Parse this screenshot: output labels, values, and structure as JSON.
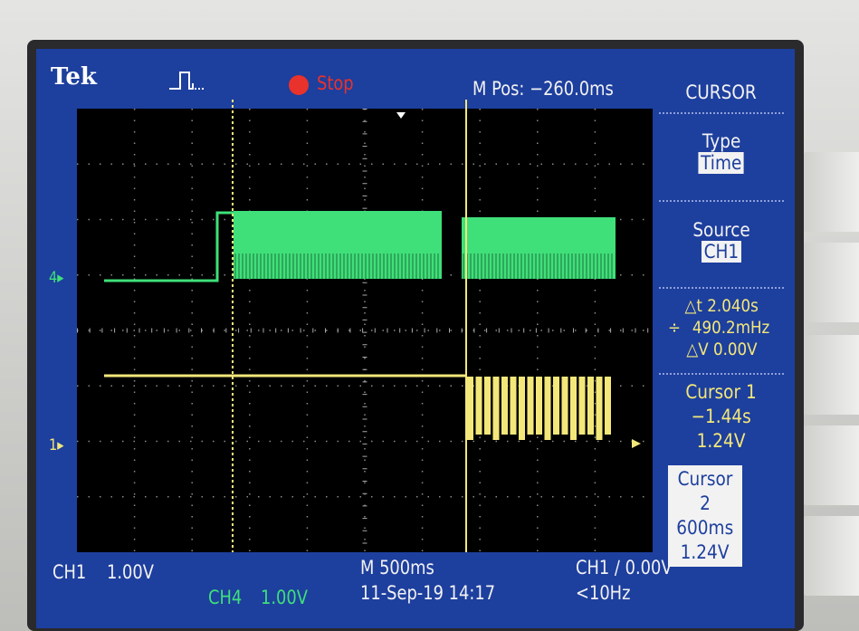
{
  "header": {
    "brand": "Tek",
    "acq_icon": "pulse-icon",
    "run_state": "Stop",
    "run_color": "#e8322b",
    "m_pos": "M Pos: −260.0ms"
  },
  "menu": {
    "title": "CURSOR",
    "type_label": "Type",
    "type_value": "Time",
    "source_label": "Source",
    "source_value": "CH1",
    "delta_t": "△t 2.040s",
    "freq": "490.2mHz",
    "freq_icon": "one-over-delta-t-icon",
    "delta_v": "△V 0.00V",
    "cursor1": {
      "label": "Cursor 1",
      "time": "−1.44s",
      "volt": "1.24V"
    },
    "cursor2": {
      "label": "Cursor 2",
      "time": "600ms",
      "volt": "1.24V"
    }
  },
  "footer": {
    "ch1": "CH1",
    "ch1_scale": "1.00V",
    "ch4": "CH4",
    "ch4_scale": "1.00V",
    "timebase": "M 500ms",
    "date": "11-Sep-19 14:17",
    "trigger": "CH1 ∕ 0.00V",
    "trigger_freq": "<10Hz"
  },
  "markers": {
    "ch4": "4",
    "ch1": "1"
  },
  "colors": {
    "ch1": "#f3e77a",
    "ch4": "#3fe07a",
    "screen": "#1d3f9e"
  }
}
